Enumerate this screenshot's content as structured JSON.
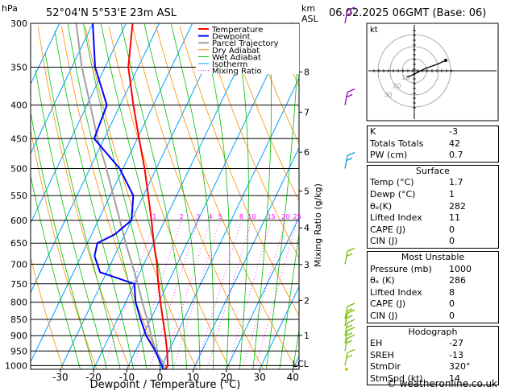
{
  "header": {
    "station": "52°04'N 5°53'E 23m ASL",
    "datetime": "06.02.2025 06GMT (Base: 06)",
    "hpa_label": "hPa",
    "km_label": "km",
    "asl_label": "ASL"
  },
  "colors": {
    "temperature": "#ff0000",
    "dewpoint": "#0000ff",
    "parcel": "#a0a0a0",
    "dry_adiabat": "#ff8c00",
    "wet_adiabat": "#00c000",
    "isotherm": "#00a0ff",
    "mixing_ratio": "#ff00ff",
    "wind_purple": "#9000c0",
    "wind_cyan": "#00a0d0",
    "wind_green": "#70c000"
  },
  "chart_data": {
    "type": "skew-t",
    "xlabel": "Dewpoint / Temperature (°C)",
    "ylabel_right": "Mixing Ratio (g/kg)",
    "pressure_levels": [
      300,
      350,
      400,
      450,
      500,
      550,
      600,
      650,
      700,
      750,
      800,
      850,
      900,
      950,
      1000
    ],
    "x_ticks": [
      -30,
      -20,
      -10,
      0,
      10,
      20,
      30,
      40
    ],
    "km_ticks": [
      {
        "label": "8",
        "p": 356
      },
      {
        "label": "7",
        "p": 410
      },
      {
        "label": "6",
        "p": 472
      },
      {
        "label": "5",
        "p": 541
      },
      {
        "label": "4",
        "p": 616
      },
      {
        "label": "3",
        "p": 701
      },
      {
        "label": "2",
        "p": 795
      },
      {
        "label": "1",
        "p": 899
      }
    ],
    "lcl_label": "LCL",
    "mixing_ratio_labels": [
      "1",
      "2",
      "3",
      "4",
      "5",
      "8",
      "10",
      "15",
      "20",
      "25"
    ],
    "mixing_ratio_values": [
      1,
      2,
      3,
      4,
      5,
      8,
      10,
      15,
      20,
      25
    ],
    "legend": [
      "Temperature",
      "Dewpoint",
      "Parcel Trajectory",
      "Dry Adiabat",
      "Wet Adiabat",
      "Isotherm",
      "Mixing Ratio"
    ],
    "temperature": [
      [
        1013,
        1.7
      ],
      [
        1000,
        1.8
      ],
      [
        950,
        -0.5
      ],
      [
        900,
        -3.2
      ],
      [
        850,
        -6.3
      ],
      [
        800,
        -9.5
      ],
      [
        750,
        -12.8
      ],
      [
        700,
        -16.0
      ],
      [
        650,
        -20.0
      ],
      [
        600,
        -24.0
      ],
      [
        550,
        -28.5
      ],
      [
        500,
        -33.5
      ],
      [
        450,
        -39.5
      ],
      [
        400,
        -46.0
      ],
      [
        350,
        -53.0
      ],
      [
        300,
        -58.0
      ]
    ],
    "dewpoint": [
      [
        1013,
        1.0
      ],
      [
        1000,
        0.0
      ],
      [
        950,
        -4.0
      ],
      [
        900,
        -9.0
      ],
      [
        850,
        -13.0
      ],
      [
        800,
        -17.0
      ],
      [
        750,
        -20.0
      ],
      [
        720,
        -32.0
      ],
      [
        700,
        -34.0
      ],
      [
        680,
        -36.0
      ],
      [
        650,
        -37.0
      ],
      [
        630,
        -33.0
      ],
      [
        600,
        -30.0
      ],
      [
        550,
        -33.0
      ],
      [
        500,
        -41.0
      ],
      [
        450,
        -53.0
      ],
      [
        400,
        -54.0
      ],
      [
        350,
        -63.0
      ],
      [
        300,
        -70.0
      ]
    ],
    "parcel": [
      [
        1013,
        1.7
      ],
      [
        1000,
        0.8
      ],
      [
        950,
        -3.8
      ],
      [
        900,
        -7.5
      ],
      [
        850,
        -11.0
      ],
      [
        800,
        -15.0
      ],
      [
        750,
        -19.0
      ],
      [
        700,
        -23.5
      ],
      [
        650,
        -28.5
      ],
      [
        600,
        -33.5
      ],
      [
        550,
        -39.0
      ],
      [
        500,
        -45.0
      ],
      [
        450,
        -52.0
      ],
      [
        400,
        -59.0
      ],
      [
        350,
        -67.0
      ],
      [
        300,
        -75.0
      ]
    ],
    "winds": [
      {
        "p": 1000,
        "color": "wind_green"
      },
      {
        "p": 950,
        "color": "wind_green"
      },
      {
        "p": 925,
        "color": "wind_green"
      },
      {
        "p": 900,
        "color": "wind_green"
      },
      {
        "p": 870,
        "color": "wind_green"
      },
      {
        "p": 850,
        "color": "wind_green"
      },
      {
        "p": 700,
        "color": "wind_green"
      },
      {
        "p": 500,
        "color": "wind_cyan"
      },
      {
        "p": 400,
        "color": "wind_purple"
      },
      {
        "p": 300,
        "color": "wind_purple"
      }
    ]
  },
  "hodograph": {
    "label": "kt",
    "ring_labels": [
      "10",
      "20",
      "30"
    ]
  },
  "indices": {
    "top": [
      {
        "label": "K",
        "value": "-3"
      },
      {
        "label": "Totals Totals",
        "value": "42"
      },
      {
        "label": "PW (cm)",
        "value": "0.7"
      }
    ],
    "surface": {
      "title": "Surface",
      "rows": [
        {
          "label": "Temp (°C)",
          "value": "1.7"
        },
        {
          "label": "Dewp (°C)",
          "value": "1"
        },
        {
          "label": "θₑ(K)",
          "value": "282"
        },
        {
          "label": "Lifted Index",
          "value": "11"
        },
        {
          "label": "CAPE (J)",
          "value": "0"
        },
        {
          "label": "CIN (J)",
          "value": "0"
        }
      ]
    },
    "unstable": {
      "title": "Most Unstable",
      "rows": [
        {
          "label": "Pressure (mb)",
          "value": "1000"
        },
        {
          "label": "θₑ (K)",
          "value": "286"
        },
        {
          "label": "Lifted Index",
          "value": "8"
        },
        {
          "label": "CAPE (J)",
          "value": "0"
        },
        {
          "label": "CIN (J)",
          "value": "0"
        }
      ]
    },
    "hodo": {
      "title": "Hodograph",
      "rows": [
        {
          "label": "EH",
          "value": "-27"
        },
        {
          "label": "SREH",
          "value": "-13"
        },
        {
          "label": "StmDir",
          "value": "320°"
        },
        {
          "label": "StmSpd (kt)",
          "value": "14"
        }
      ]
    }
  },
  "footer": "© weatheronline.co.uk"
}
